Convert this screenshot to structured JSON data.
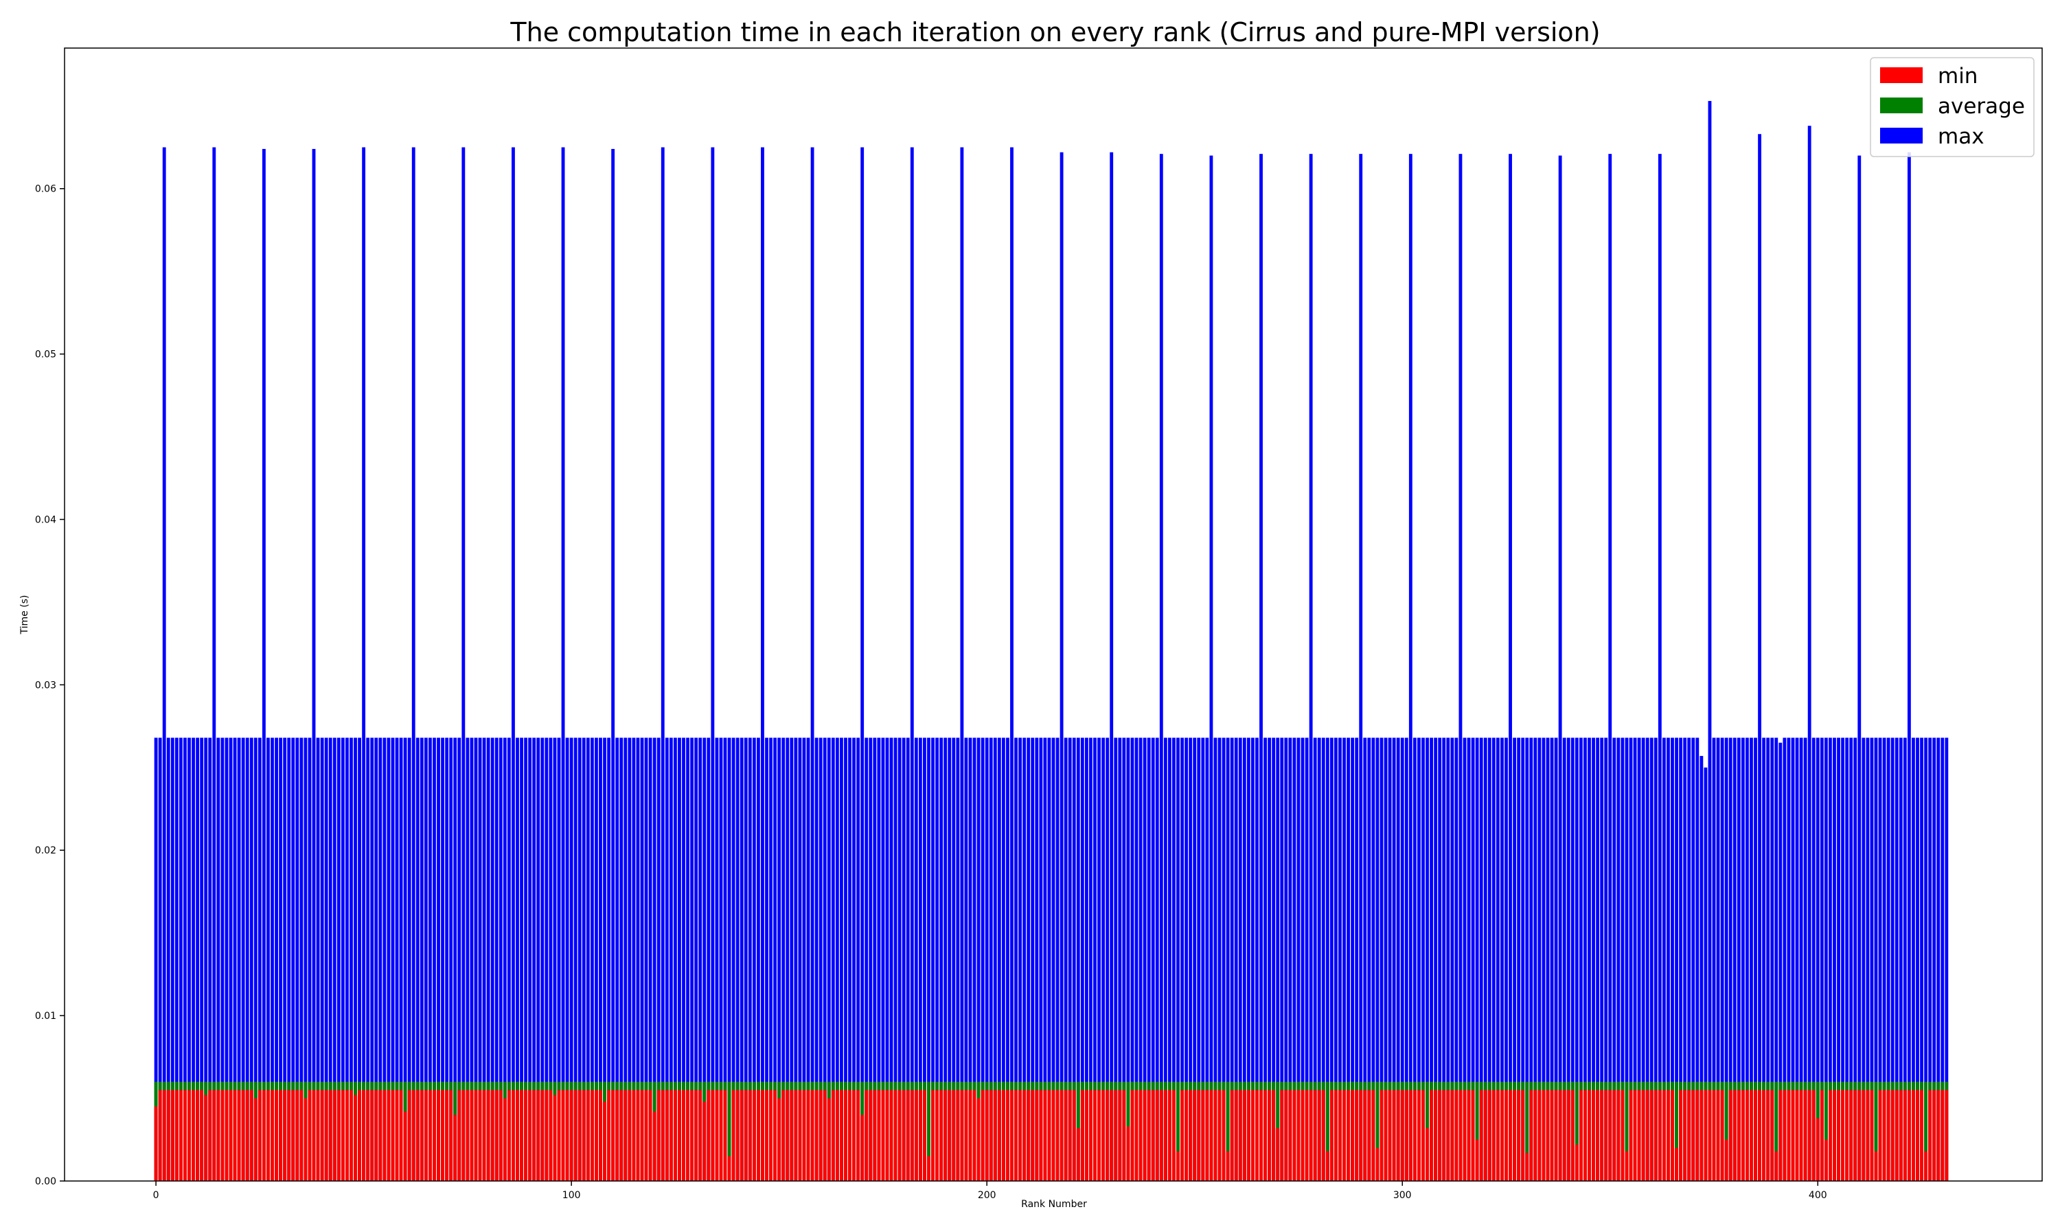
{
  "chart_data": {
    "type": "bar",
    "title": "The computation time in each iteration on every rank (Cirrus and pure-MPI version)",
    "xlabel": "Rank Number",
    "ylabel": "Time (s)",
    "xlim": [
      -22,
      454
    ],
    "ylim": [
      0.0,
      0.0685
    ],
    "xticks": [
      0,
      100,
      200,
      300,
      400
    ],
    "xtick_labels": [
      "0",
      "100",
      "200",
      "300",
      "400"
    ],
    "yticks": [
      0.0,
      0.01,
      0.02,
      0.03,
      0.04,
      0.05,
      0.06
    ],
    "ytick_labels": [
      "0.00",
      "0.01",
      "0.02",
      "0.03",
      "0.04",
      "0.05",
      "0.06"
    ],
    "grid": false,
    "legend_position": "top-right",
    "num_ranks": 432,
    "colors": {
      "min": "#ff0000",
      "average": "#008000",
      "max": "#0000ff"
    },
    "series": [
      {
        "name": "min",
        "color": "#ff0000",
        "default": 0.0055,
        "overrides": {
          "0": 0.0045,
          "12": 0.0052,
          "24": 0.005,
          "36": 0.005,
          "48": 0.0052,
          "60": 0.0042,
          "72": 0.004,
          "84": 0.005,
          "96": 0.0052,
          "108": 0.0048,
          "120": 0.0042,
          "132": 0.0048,
          "138": 0.0015,
          "150": 0.005,
          "162": 0.005,
          "170": 0.004,
          "186": 0.0015,
          "198": 0.005,
          "222": 0.0032,
          "234": 0.0033,
          "246": 0.0018,
          "258": 0.0018,
          "270": 0.0032,
          "282": 0.0018,
          "294": 0.002,
          "306": 0.0032,
          "318": 0.0025,
          "330": 0.0017,
          "342": 0.0022,
          "354": 0.0018,
          "366": 0.002,
          "378": 0.0025,
          "390": 0.0018,
          "400": 0.0038,
          "402": 0.0025,
          "414": 0.0018,
          "426": 0.0018
        }
      },
      {
        "name": "average",
        "color": "#008000",
        "default": 0.006,
        "overrides": {}
      },
      {
        "name": "max",
        "color": "#0000ff",
        "default": 0.0268,
        "overrides": {
          "2": 0.0625,
          "14": 0.0625,
          "26": 0.0624,
          "38": 0.0624,
          "50": 0.0625,
          "62": 0.0625,
          "74": 0.0625,
          "86": 0.0625,
          "98": 0.0625,
          "110": 0.0624,
          "122": 0.0625,
          "134": 0.0625,
          "146": 0.0625,
          "158": 0.0625,
          "170": 0.0625,
          "182": 0.0625,
          "194": 0.0625,
          "206": 0.0625,
          "218": 0.0622,
          "230": 0.0622,
          "242": 0.0621,
          "254": 0.062,
          "266": 0.0621,
          "278": 0.0621,
          "290": 0.0621,
          "302": 0.0621,
          "314": 0.0621,
          "326": 0.0621,
          "338": 0.062,
          "350": 0.0621,
          "362": 0.0621,
          "372": 0.0257,
          "373": 0.025,
          "374": 0.0653,
          "386": 0.0633,
          "391": 0.0265,
          "398": 0.0638,
          "410": 0.062,
          "422": 0.0622
        }
      }
    ]
  }
}
